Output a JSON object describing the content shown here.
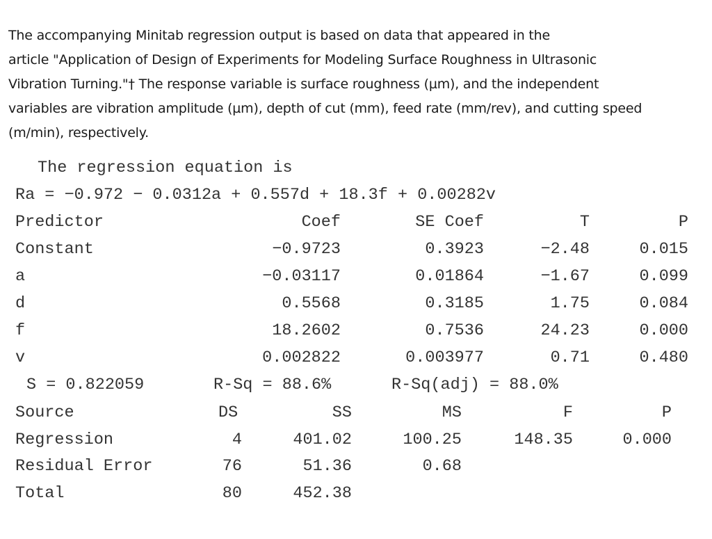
{
  "intro": {
    "line1": "The accompanying Minitab regression output is based on data that appeared in the",
    "line2": "article \"Application of Design of Experiments for Modeling Surface Roughness in Ultrasonic",
    "line3": "Vibration Turning.\"† The response variable is surface roughness (µm), and the independent",
    "line4": "variables are vibration amplitude (µm), depth of cut (mm), feed rate (mm/rev), and cutting speed",
    "line5": "(m/min), respectively."
  },
  "regression": {
    "heading": "The regression equation is",
    "equation": "Ra = −0.972 − 0.0312a + 0.557d + 18.3f + 0.00282v"
  },
  "coef_table": {
    "headers": [
      "Predictor",
      "Coef",
      "SE Coef",
      "T",
      "P"
    ],
    "rows": [
      [
        "Constant",
        "−0.9723",
        "0.3923",
        "−2.48",
        "0.015"
      ],
      [
        "a",
        "−0.03117",
        "0.01864",
        "−1.67",
        "0.099"
      ],
      [
        "d",
        "0.5568",
        "0.3185",
        "1.75",
        "0.084"
      ],
      [
        "f",
        "18.2602",
        "0.7536",
        "24.23",
        "0.000"
      ],
      [
        "v",
        "0.002822",
        "0.003977",
        "0.71",
        "0.480"
      ]
    ]
  },
  "summary": {
    "s": "S = 0.822059",
    "rsq": "R-Sq = 88.6%",
    "rsq_adj": "R-Sq(adj) = 88.0%"
  },
  "anova_table": {
    "headers": [
      "Source",
      "DS",
      "SS",
      "MS",
      "F",
      "P"
    ],
    "rows": [
      [
        "Regression",
        "4",
        "401.02",
        "100.25",
        "148.35",
        "0.000"
      ],
      [
        "Residual Error",
        "76",
        "51.36",
        "0.68",
        "",
        ""
      ],
      [
        "Total",
        "80",
        "452.38",
        "",
        "",
        ""
      ]
    ]
  }
}
